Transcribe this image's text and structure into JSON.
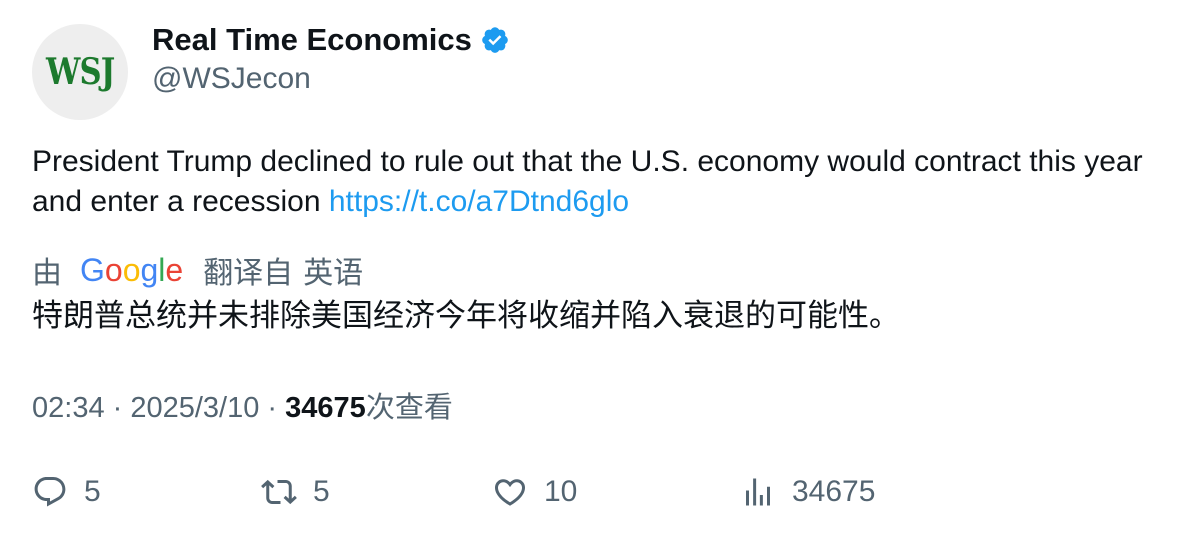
{
  "author": {
    "avatar_text": "WSJ",
    "display_name": "Real Time Economics",
    "handle": "@WSJecon",
    "verified_icon": "verified-badge-icon"
  },
  "tweet": {
    "text": "President Trump declined to rule out that the U.S. economy would contract this year and enter a recession ",
    "link": "https://t.co/a7Dtnd6glo"
  },
  "translation": {
    "by_label": "由",
    "provider": "Google",
    "from_label": "翻译自",
    "language": "英语",
    "text": "特朗普总统并未排除美国经济今年将收缩并陷入衰退的可能性。"
  },
  "meta": {
    "time": "02:34",
    "separator": " · ",
    "date": "2025/3/10",
    "views": "34675",
    "views_label": "次查看"
  },
  "actions": {
    "reply_count": "5",
    "retweet_count": "5",
    "like_count": "10",
    "views_count": "34675"
  },
  "colors": {
    "accent": "#1d9bf0",
    "secondary_text": "#536471",
    "primary_text": "#0f1419",
    "wsj_green": "#1d7a2e"
  }
}
